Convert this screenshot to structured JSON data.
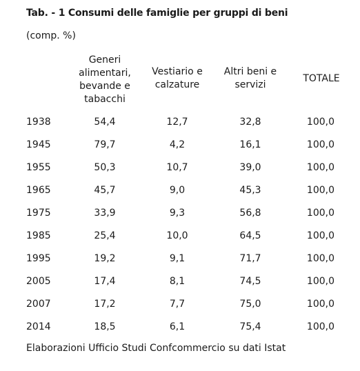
{
  "title": "Tab. - 1 Consumi delle famiglie per gruppi di beni",
  "subtitle": "(comp. %)",
  "headers": {
    "generi": [
      "Generi",
      "alimentari,",
      "bevande e",
      "tabacchi"
    ],
    "vestiario": [
      "Vestiario e",
      "calzature"
    ],
    "altri": [
      "Altri beni e",
      "servizi"
    ],
    "totale": "TOTALE"
  },
  "rows": [
    {
      "year": "1938",
      "generi": "54,4",
      "vestiario": "12,7",
      "altri": "32,8",
      "totale": "100,0"
    },
    {
      "year": "1945",
      "generi": "79,7",
      "vestiario": "4,2",
      "altri": "16,1",
      "totale": "100,0"
    },
    {
      "year": "1955",
      "generi": "50,3",
      "vestiario": "10,7",
      "altri": "39,0",
      "totale": "100,0"
    },
    {
      "year": "1965",
      "generi": "45,7",
      "vestiario": "9,0",
      "altri": "45,3",
      "totale": "100,0"
    },
    {
      "year": "1975",
      "generi": "33,9",
      "vestiario": "9,3",
      "altri": "56,8",
      "totale": "100,0"
    },
    {
      "year": "1985",
      "generi": "25,4",
      "vestiario": "10,0",
      "altri": "64,5",
      "totale": "100,0"
    },
    {
      "year": "1995",
      "generi": "19,2",
      "vestiario": "9,1",
      "altri": "71,7",
      "totale": "100,0"
    },
    {
      "year": "2005",
      "generi": "17,4",
      "vestiario": "8,1",
      "altri": "74,5",
      "totale": "100,0"
    },
    {
      "year": "2007",
      "generi": "17,2",
      "vestiario": "7,7",
      "altri": "75,0",
      "totale": "100,0"
    },
    {
      "year": "2014",
      "generi": "18,5",
      "vestiario": "6,1",
      "altri": "75,4",
      "totale": "100,0"
    }
  ],
  "footer": "Elaborazioni Ufficio Studi Confcommercio su dati Istat"
}
